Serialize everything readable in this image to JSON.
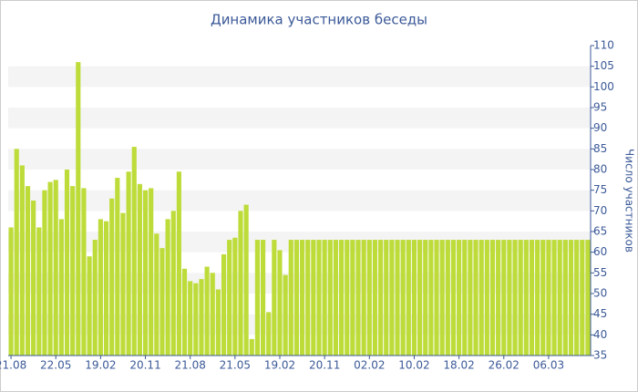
{
  "chart_data": {
    "type": "bar",
    "title": "Динамика участников беседы",
    "y_label": "Число участников",
    "categories": [
      "21.08",
      null,
      null,
      null,
      null,
      null,
      null,
      null,
      "22.05",
      null,
      null,
      null,
      null,
      null,
      null,
      null,
      "19.02",
      null,
      null,
      null,
      null,
      null,
      null,
      null,
      "20.11",
      null,
      null,
      null,
      null,
      null,
      null,
      null,
      "21.08",
      null,
      null,
      null,
      null,
      null,
      null,
      null,
      "21.05",
      null,
      null,
      null,
      null,
      null,
      null,
      null,
      "19.02",
      null,
      null,
      null,
      null,
      null,
      null,
      null,
      "20.11",
      null,
      null,
      null,
      null,
      null,
      null,
      null,
      "02.02",
      null,
      null,
      null,
      null,
      null,
      null,
      null,
      "10.02",
      null,
      null,
      null,
      null,
      null,
      null,
      null,
      "18.02",
      null,
      null,
      null,
      null,
      null,
      null,
      null,
      "26.02",
      null,
      null,
      null,
      null,
      null,
      null,
      null,
      "06.03",
      null,
      null,
      null,
      null,
      null,
      null,
      null
    ],
    "values": [
      66,
      85,
      81,
      76,
      72.5,
      66,
      75,
      77,
      77.5,
      68,
      80,
      76,
      106,
      75.5,
      59,
      63,
      68,
      67.5,
      73,
      78,
      69.5,
      79.5,
      85.5,
      76.5,
      75,
      75.5,
      64.5,
      61,
      68,
      70,
      79.5,
      56,
      53,
      52.5,
      53.5,
      56.5,
      55,
      51,
      59.5,
      63,
      63.5,
      70,
      71.5,
      39,
      63,
      63,
      45.5,
      63,
      60.5,
      54.5,
      63,
      63,
      63,
      63,
      63,
      63,
      63,
      63,
      63,
      63,
      63,
      63,
      63,
      63,
      63,
      63,
      63,
      63,
      63,
      63,
      63,
      63,
      63,
      63,
      63,
      63,
      63,
      63,
      63,
      63,
      63,
      63,
      63,
      63,
      63,
      63,
      63,
      63,
      63,
      63,
      63,
      63,
      63,
      63,
      63,
      63,
      63,
      63,
      63,
      63,
      63,
      63,
      63,
      63
    ],
    "color": "#bddc3a",
    "ylim": [
      35,
      110
    ],
    "yticks": [
      35,
      40,
      45,
      50,
      55,
      60,
      65,
      70,
      75,
      80,
      85,
      90,
      95,
      100,
      105,
      110
    ],
    "grid": true
  }
}
